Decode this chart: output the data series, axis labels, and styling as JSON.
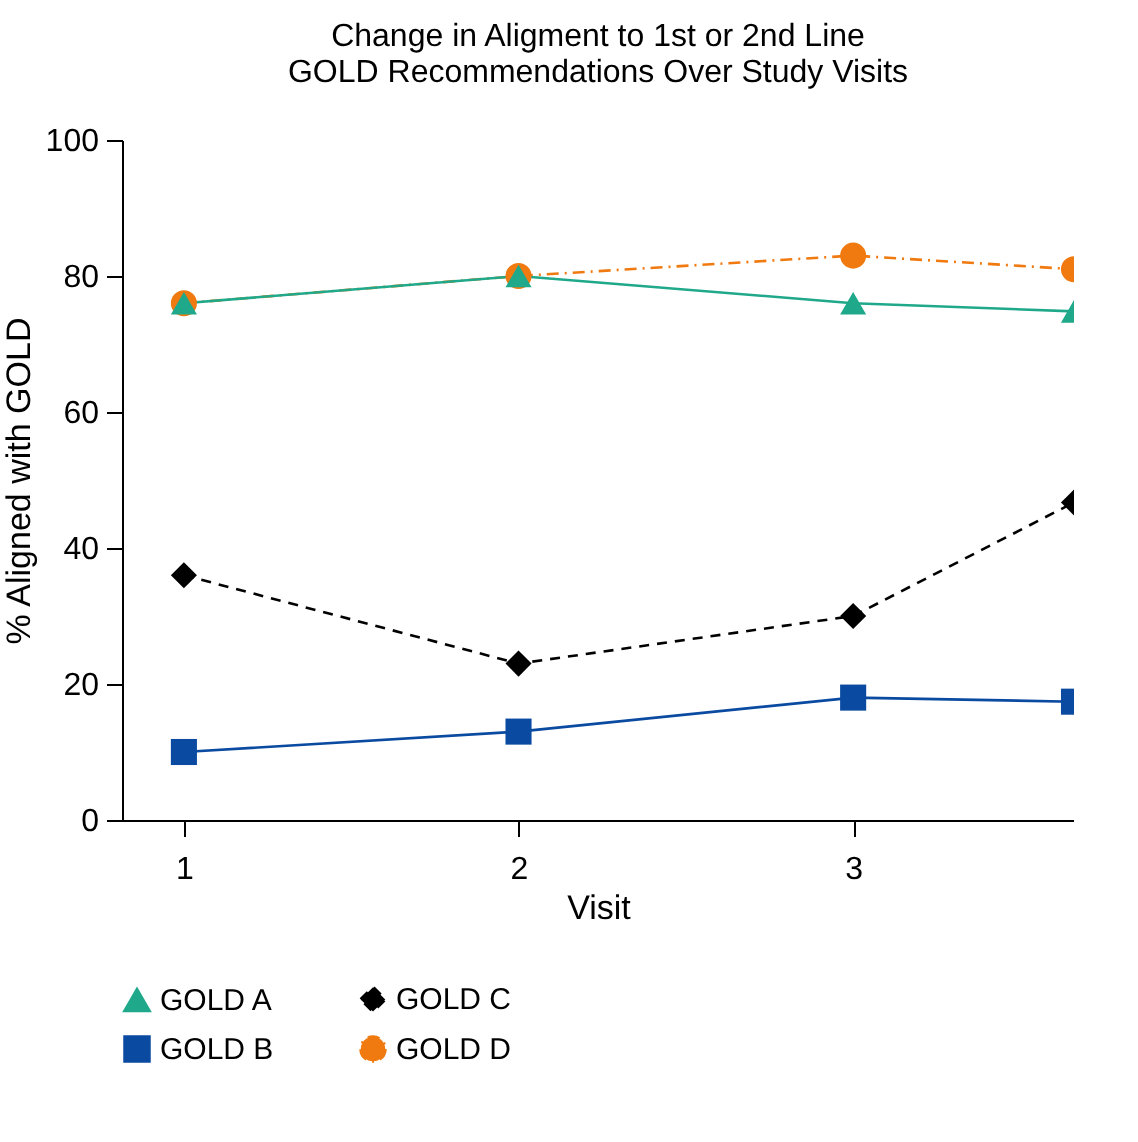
{
  "chart_data": {
    "type": "line",
    "title": "Change in Aligment to 1st or 2nd Line\nGOLD Recommendations Over Study Visits",
    "xlabel": "Visit",
    "ylabel": "% Aligned with GOLD",
    "x": [
      1,
      2,
      3,
      3.66
    ],
    "xlim": [
      0.815,
      3.66
    ],
    "xticks": [
      1,
      2,
      3
    ],
    "ylim": [
      0,
      100
    ],
    "yticks": [
      0,
      20,
      40,
      60,
      80,
      100
    ],
    "grid": false,
    "legend": "bottom",
    "series": [
      {
        "name": "GOLD A",
        "color": "#1fa98a",
        "marker": "triangle",
        "line_style": "solid",
        "values": [
          76,
          80,
          76,
          74.8
        ]
      },
      {
        "name": "GOLD C",
        "color": "#000000",
        "marker": "diamond",
        "line_style": "dashed",
        "values": [
          36,
          23,
          30,
          46.7
        ]
      },
      {
        "name": "GOLD B",
        "color": "#0a4aa0",
        "marker": "square",
        "line_style": "solid",
        "values": [
          10,
          13,
          18,
          17.4
        ]
      },
      {
        "name": "GOLD D",
        "color": "#f07a10",
        "marker": "circle",
        "line_style": "dashdot",
        "values": [
          76,
          80,
          83,
          81
        ]
      }
    ]
  }
}
